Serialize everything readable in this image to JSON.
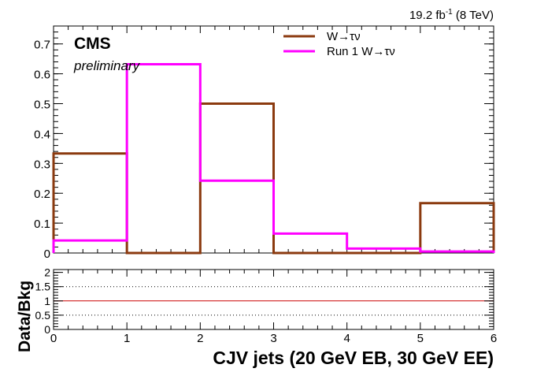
{
  "lumi_label": {
    "main": "19.2 fb",
    "sup": "-1",
    "energy": " (8 TeV)"
  },
  "cms_label": "CMS",
  "preliminary_label": "preliminary",
  "chart_data": [
    {
      "type": "histogram-step",
      "x_bin_edges": [
        0,
        1,
        2,
        3,
        4,
        5,
        6
      ],
      "xlim": [
        0,
        6
      ],
      "ylim": [
        0,
        0.76
      ],
      "y_ticks": [
        "0",
        "0.1",
        "0.2",
        "0.3",
        "0.4",
        "0.5",
        "0.6",
        "0.7"
      ],
      "y_tick_values": [
        0,
        0.1,
        0.2,
        0.3,
        0.4,
        0.5,
        0.6,
        0.7
      ],
      "legend_position": "top-right",
      "series": [
        {
          "name": "W→τν",
          "color": "#8B3A0F",
          "values": [
            0.333,
            0.0,
            0.5,
            0.0,
            0.0,
            0.167
          ]
        },
        {
          "name": "Run 1 W→τν",
          "color": "#ff00ff",
          "values": [
            0.042,
            0.632,
            0.242,
            0.065,
            0.015,
            0.005
          ]
        }
      ]
    },
    {
      "type": "ratio",
      "ylabel": "Data/Bkg",
      "xlabel": "CJV jets (20 GeV EB, 30 GeV EE)",
      "xlim": [
        0,
        6
      ],
      "ylim": [
        0,
        2.1
      ],
      "x_ticks": [
        "0",
        "1",
        "2",
        "3",
        "4",
        "5",
        "6"
      ],
      "x_tick_values": [
        0,
        1,
        2,
        3,
        4,
        5,
        6
      ],
      "y_ticks": [
        "0",
        "0.5",
        "1",
        "1.5",
        "2"
      ],
      "y_tick_values": [
        0,
        0.5,
        1,
        1.5,
        2
      ],
      "reference_line": {
        "value": 1,
        "color": "#cc0000"
      },
      "dotted_lines": [
        0.5,
        1.5
      ]
    }
  ]
}
